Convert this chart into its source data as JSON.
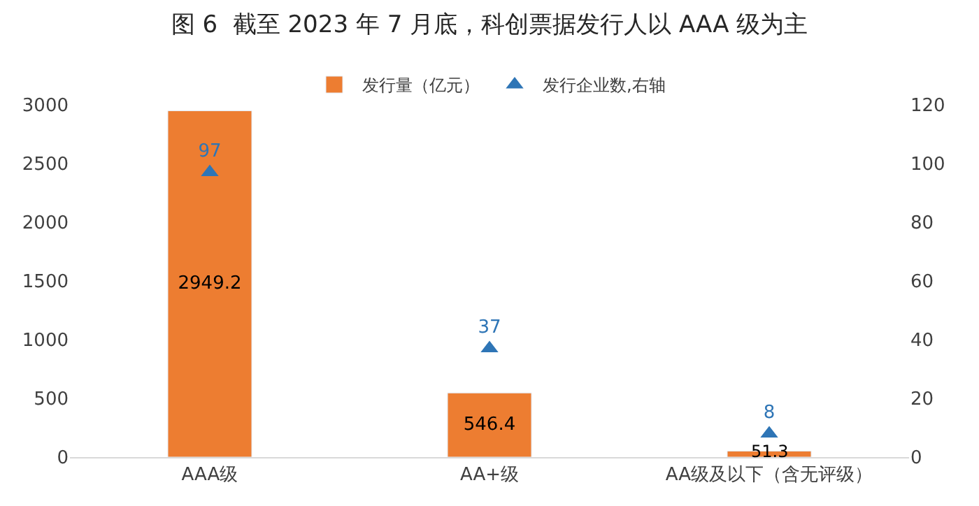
{
  "chart_data": {
    "type": "bar",
    "title": "图 6  截至 2023 年 7 月底，科创票据发行人以 AAA 级为主",
    "categories": [
      "AAA级",
      "AA+级",
      "AA级及以下（含无评级）"
    ],
    "series": [
      {
        "name": "发行量（亿元）",
        "color": "#ed7d31",
        "values": [
          2949.2,
          546.4,
          51.3
        ]
      },
      {
        "name": "发行企业数,右轴",
        "color": "#2e75b6",
        "values": [
          97,
          37,
          8
        ],
        "type": "scatter",
        "axis": "y2",
        "marker": "triangle"
      }
    ],
    "ylim": [
      0,
      3000
    ],
    "yticks": [
      0,
      500,
      1000,
      1500,
      2000,
      2500,
      3000
    ],
    "y2lim": [
      0,
      120
    ],
    "y2ticks": [
      0,
      20,
      40,
      60,
      80,
      100,
      120
    ],
    "data_labels": true,
    "legend": "top"
  }
}
